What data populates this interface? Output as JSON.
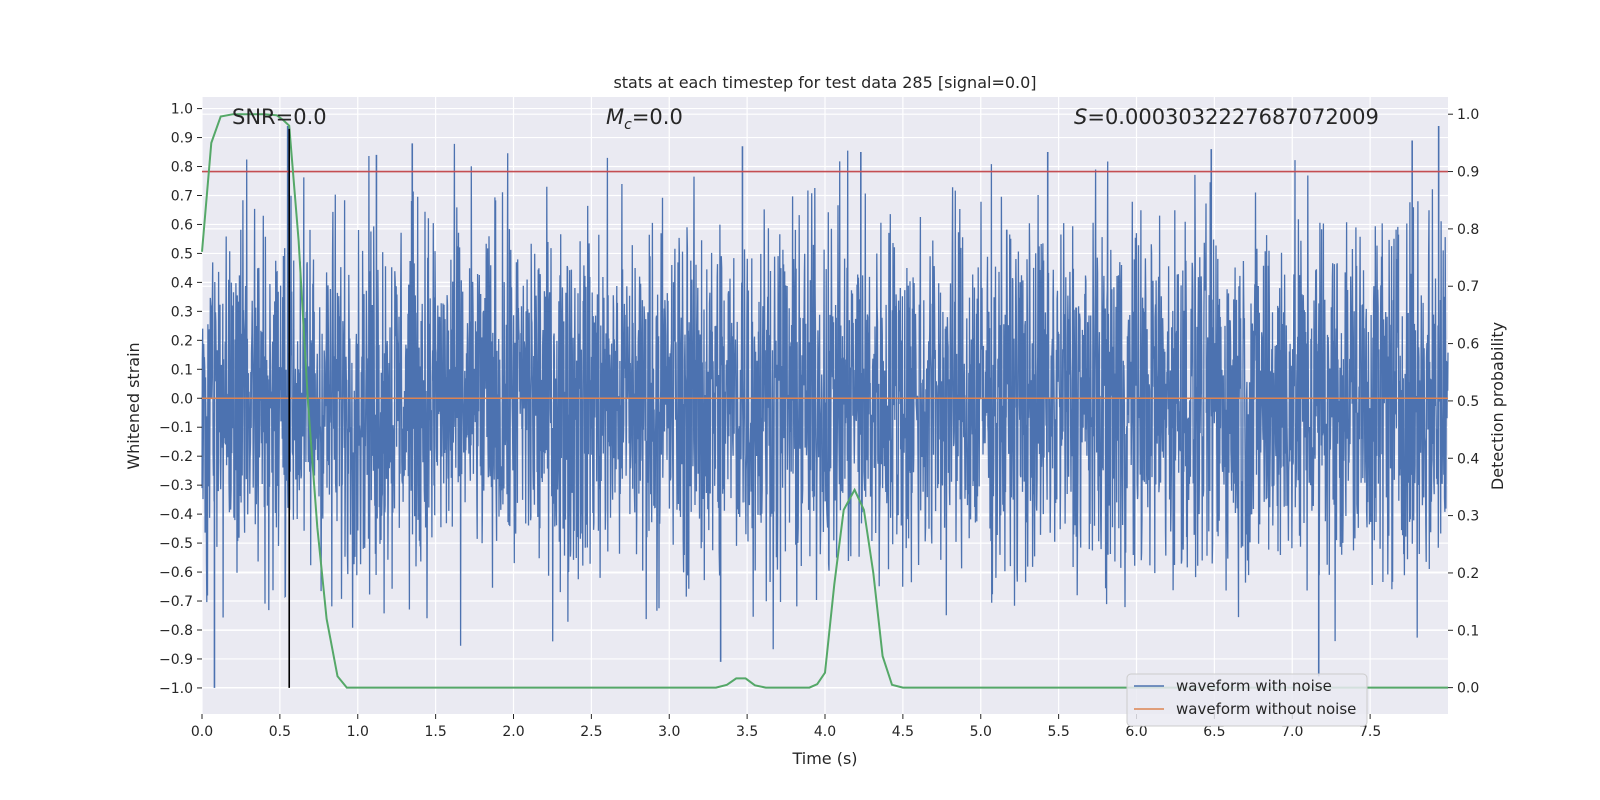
{
  "chart_data": {
    "type": "line",
    "title": "stats at each timestep for test data 285 [signal=0.0]",
    "xlabel": "Time (s)",
    "ylabel": "Whitened strain",
    "y2label": "Detection probability",
    "xlim": [
      0.0,
      8.0
    ],
    "ylim": [
      -1.09,
      1.04
    ],
    "y2lim": [
      -0.046,
      1.03
    ],
    "xticks": [
      "0.0",
      "0.5",
      "1.0",
      "1.5",
      "2.0",
      "2.5",
      "3.0",
      "3.5",
      "4.0",
      "4.5",
      "5.0",
      "5.5",
      "6.0",
      "6.5",
      "7.0",
      "7.5"
    ],
    "yticks": [
      "1.0",
      "0.9",
      "0.8",
      "0.7",
      "0.6",
      "0.5",
      "0.4",
      "0.3",
      "0.2",
      "0.1",
      "0.0",
      "-0.1",
      "-0.2",
      "-0.3",
      "-0.4",
      "-0.5",
      "-0.6",
      "-0.7",
      "-0.8",
      "-0.9",
      "-1.0"
    ],
    "y2ticks": [
      "1.0",
      "0.9",
      "0.8",
      "0.7",
      "0.6",
      "0.5",
      "0.4",
      "0.3",
      "0.2",
      "0.1",
      "0.0"
    ],
    "annotations": {
      "snr": "SNR=0.0",
      "mc_symbol": "M",
      "mc_sub": "c",
      "mc_value": "=0.0",
      "s_symbol": "S",
      "s_value": "=0.0003032227687072009"
    },
    "threshold": {
      "value": 0.9,
      "axis": "right",
      "color": "#c44e52"
    },
    "marker_time": 0.56,
    "series": [
      {
        "name": "waveform with noise",
        "axis": "left",
        "color": "#4c72b0",
        "description": "dense noise, roughly -0.45..0.5 envelope with spikes to about +/-0.9",
        "peaks": [
          {
            "x": 0.08,
            "y": -1.0
          },
          {
            "x": 0.55,
            "y": 0.94
          },
          {
            "x": 1.12,
            "y": 0.84
          },
          {
            "x": 1.35,
            "y": 0.88
          },
          {
            "x": 3.33,
            "y": -0.91
          },
          {
            "x": 3.47,
            "y": 0.87
          },
          {
            "x": 4.23,
            "y": 0.85
          },
          {
            "x": 5.43,
            "y": 0.85
          },
          {
            "x": 6.48,
            "y": 0.86
          },
          {
            "x": 7.17,
            "y": -0.96
          },
          {
            "x": 7.77,
            "y": 0.89
          },
          {
            "x": 7.94,
            "y": 0.94
          }
        ]
      },
      {
        "name": "waveform without noise",
        "axis": "left",
        "color": "#dd8452",
        "x": [
          0.0,
          8.0
        ],
        "y": [
          0.0,
          0.0
        ]
      },
      {
        "name": "detection probability",
        "axis": "right",
        "color": "#55a868",
        "x": [
          0.0,
          0.06,
          0.12,
          0.2,
          0.3,
          0.4,
          0.48,
          0.52,
          0.56,
          0.62,
          0.68,
          0.74,
          0.8,
          0.87,
          0.93,
          1.0,
          3.3,
          3.37,
          3.43,
          3.49,
          3.55,
          3.62,
          3.9,
          3.95,
          4.0,
          4.06,
          4.12,
          4.19,
          4.25,
          4.31,
          4.37,
          4.43,
          4.5,
          8.0
        ],
        "y": [
          0.76,
          0.95,
          0.996,
          1.0,
          1.0,
          1.0,
          0.998,
          0.99,
          0.98,
          0.78,
          0.5,
          0.28,
          0.12,
          0.02,
          0.0,
          0.0,
          0.0,
          0.005,
          0.016,
          0.016,
          0.004,
          0.0,
          0.0,
          0.006,
          0.026,
          0.18,
          0.31,
          0.345,
          0.31,
          0.2,
          0.055,
          0.005,
          0.0,
          0.0
        ]
      }
    ],
    "legend": {
      "position": "lower-right",
      "entries": [
        {
          "label": "waveform with noise",
          "color": "#4c72b0"
        },
        {
          "label": "waveform without noise",
          "color": "#dd8452"
        }
      ]
    },
    "colors": {
      "axes_bg": "#eaeaf2",
      "grid": "#ffffff",
      "text": "#262626",
      "marker": "#000000"
    }
  }
}
